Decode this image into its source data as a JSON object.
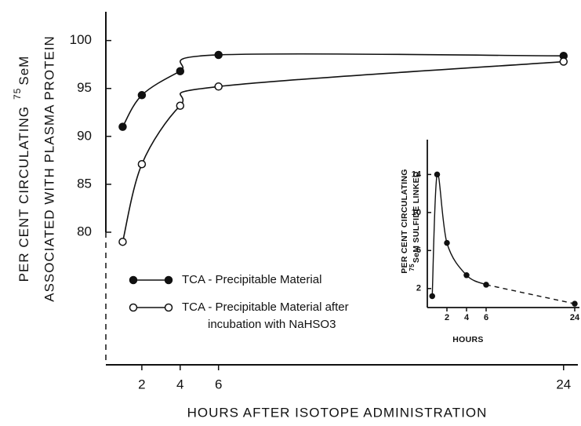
{
  "chart_data": [
    {
      "type": "line",
      "y_label": {
        "line1": "PER CENT CIRCULATING",
        "isotope": "75",
        "element": "SeM",
        "line2": "ASSOCIATED WITH PLASMA PROTEIN"
      },
      "x_label": "HOURS AFTER ISOTOPE ADMINISTRATION",
      "x": [
        1,
        2,
        4,
        6,
        24
      ],
      "series": [
        {
          "name": "TCA - Precipitable Material",
          "color": "#111111",
          "marker": "filled",
          "values": [
            91,
            94.3,
            96.8,
            98.5,
            98.4
          ]
        },
        {
          "name": "TCA - Precipitable Material after incubation with NaHSO3",
          "color": "#111111",
          "marker": "open",
          "values": [
            79,
            87.1,
            93.2,
            95.2,
            97.8
          ]
        }
      ],
      "xlim": [
        0,
        24.5
      ],
      "xticks": [
        2,
        4,
        6,
        24
      ],
      "ylim": [
        80,
        103
      ],
      "yticks": [
        80,
        85,
        90,
        95,
        100
      ]
    },
    {
      "type": "line",
      "y_label": {
        "line1": "PER CENT CIRCULATING",
        "isotope": "75",
        "element": "SeM SULFIDE LINKED"
      },
      "x_label": "HOURS",
      "x": [
        0.5,
        1,
        2,
        4,
        6,
        24
      ],
      "series": [
        {
          "color": "#111111",
          "marker": "filled",
          "values": [
            1.2,
            14,
            6.8,
            3.4,
            2.4,
            0.4
          ]
        }
      ],
      "xlim": [
        0,
        24
      ],
      "xticks": [
        2,
        4,
        6,
        24
      ],
      "ylim": [
        0,
        17.5
      ],
      "yticks": [
        2,
        6,
        10,
        14
      ]
    }
  ]
}
